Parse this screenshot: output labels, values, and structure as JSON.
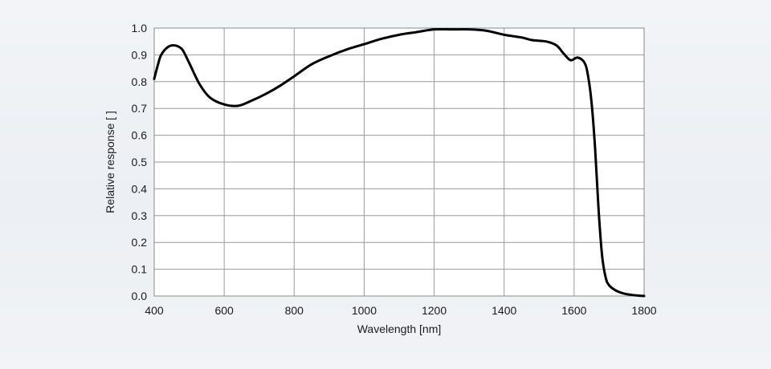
{
  "chart_data": {
    "type": "line",
    "xlabel": "Wavelength [nm]",
    "ylabel": "Relative response [ ]",
    "xlim": [
      400,
      1800
    ],
    "ylim": [
      0.0,
      1.0
    ],
    "xticks": [
      "400",
      "600",
      "800",
      "1000",
      "1200",
      "1400",
      "1600",
      "1800"
    ],
    "yticks": [
      "0.0",
      "0.1",
      "0.2",
      "0.3",
      "0.4",
      "0.5",
      "0.6",
      "0.7",
      "0.8",
      "0.9",
      "1.0"
    ],
    "grid": true,
    "line_color": "#000000",
    "series": [
      {
        "x": [
          400,
          410,
          420,
          440,
          460,
          480,
          500,
          530,
          560,
          600,
          640,
          680,
          720,
          760,
          800,
          850,
          900,
          950,
          1000,
          1050,
          1100,
          1150,
          1200,
          1250,
          1300,
          1350,
          1400,
          1450,
          1480,
          1520,
          1550,
          1570,
          1590,
          1610,
          1630,
          1640,
          1650,
          1660,
          1670,
          1680,
          1690,
          1700,
          1720,
          1740,
          1760,
          1780,
          1800
        ],
        "y": [
          0.81,
          0.86,
          0.9,
          0.93,
          0.935,
          0.92,
          0.87,
          0.79,
          0.74,
          0.715,
          0.71,
          0.73,
          0.755,
          0.785,
          0.82,
          0.865,
          0.895,
          0.92,
          0.94,
          0.96,
          0.975,
          0.985,
          0.995,
          0.995,
          0.995,
          0.99,
          0.975,
          0.965,
          0.955,
          0.95,
          0.935,
          0.905,
          0.88,
          0.89,
          0.87,
          0.82,
          0.72,
          0.55,
          0.32,
          0.15,
          0.07,
          0.04,
          0.02,
          0.01,
          0.005,
          0.002,
          0.0
        ]
      }
    ]
  }
}
